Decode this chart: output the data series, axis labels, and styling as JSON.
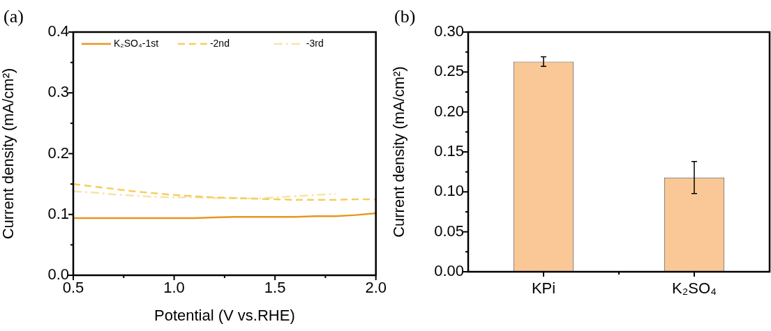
{
  "chart_data": [
    {
      "type": "line",
      "title": "(a)",
      "xlabel": "Potential (V vs.RHE)",
      "ylabel": "Current density (mA/cm²)",
      "x": [
        0.5,
        0.6,
        0.7,
        0.8,
        0.9,
        1.0,
        1.1,
        1.2,
        1.3,
        1.4,
        1.5,
        1.6,
        1.7,
        1.8,
        1.9,
        2.0
      ],
      "series": [
        {
          "name": "K₂SO₄-1st",
          "color": "#e8961e",
          "line_style": "solid",
          "values": [
            0.094,
            0.094,
            0.094,
            0.094,
            0.094,
            0.094,
            0.094,
            0.095,
            0.096,
            0.096,
            0.096,
            0.096,
            0.097,
            0.097,
            0.099,
            0.102
          ]
        },
        {
          "name": "-2nd",
          "color": "#f5cd5a",
          "line_style": "dashed",
          "values": [
            0.15,
            0.146,
            0.142,
            0.138,
            0.135,
            0.132,
            0.13,
            0.128,
            0.127,
            0.126,
            0.125,
            0.124,
            0.124,
            0.124,
            0.125,
            0.125
          ]
        },
        {
          "name": "-3rd",
          "color": "#f7e3a8",
          "line_style": "dashdot",
          "x": [
            0.5,
            0.6,
            0.7,
            0.8,
            0.9,
            1.0,
            1.1,
            1.2,
            1.3,
            1.4,
            1.5,
            1.6,
            1.7,
            1.8
          ],
          "values": [
            0.138,
            0.136,
            0.133,
            0.131,
            0.129,
            0.128,
            0.128,
            0.127,
            0.127,
            0.126,
            0.128,
            0.13,
            0.132,
            0.134
          ]
        }
      ],
      "xlim": [
        0.5,
        2.0
      ],
      "xticks": [
        {
          "value": 0.5,
          "label": "0.5"
        },
        {
          "value": 0.75,
          "label": null
        },
        {
          "value": 1.0,
          "label": "1.0"
        },
        {
          "value": 1.25,
          "label": null
        },
        {
          "value": 1.5,
          "label": "1.5"
        },
        {
          "value": 1.75,
          "label": null
        },
        {
          "value": 2.0,
          "label": "2.0"
        }
      ],
      "ylim": [
        0,
        0.4
      ],
      "yticks": [
        {
          "value": 0,
          "label": "0.0"
        },
        {
          "value": 0.05,
          "label": null
        },
        0.1,
        {
          "value": 0.15,
          "label": null
        },
        0.2,
        {
          "value": 0.25,
          "label": null
        },
        0.3,
        {
          "value": 0.35,
          "label": null
        },
        0.4
      ],
      "marker": "none",
      "legend": "top"
    },
    {
      "type": "bar",
      "title": "(b)",
      "ylabel": "Current density (mA/cm²)",
      "categories": [
        "KPi",
        "K₂SO₄"
      ],
      "values": [
        0.263,
        0.118
      ],
      "errors": [
        0.006,
        0.02
      ],
      "color": "#f9c896",
      "ylim": [
        0,
        0.3
      ],
      "yticks": [
        {
          "value": 0,
          "label": "0.00"
        },
        {
          "value": 0.025,
          "label": null
        },
        0.05,
        {
          "value": 0.075,
          "label": null
        },
        {
          "value": 0.1,
          "label": "0.10"
        },
        {
          "value": 0.125,
          "label": null
        },
        0.15,
        {
          "value": 0.175,
          "label": null
        },
        {
          "value": 0.2,
          "label": "0.20"
        },
        {
          "value": 0.225,
          "label": null
        },
        0.25,
        {
          "value": 0.275,
          "label": null
        },
        {
          "value": 0.3,
          "label": "0.30"
        }
      ]
    }
  ]
}
